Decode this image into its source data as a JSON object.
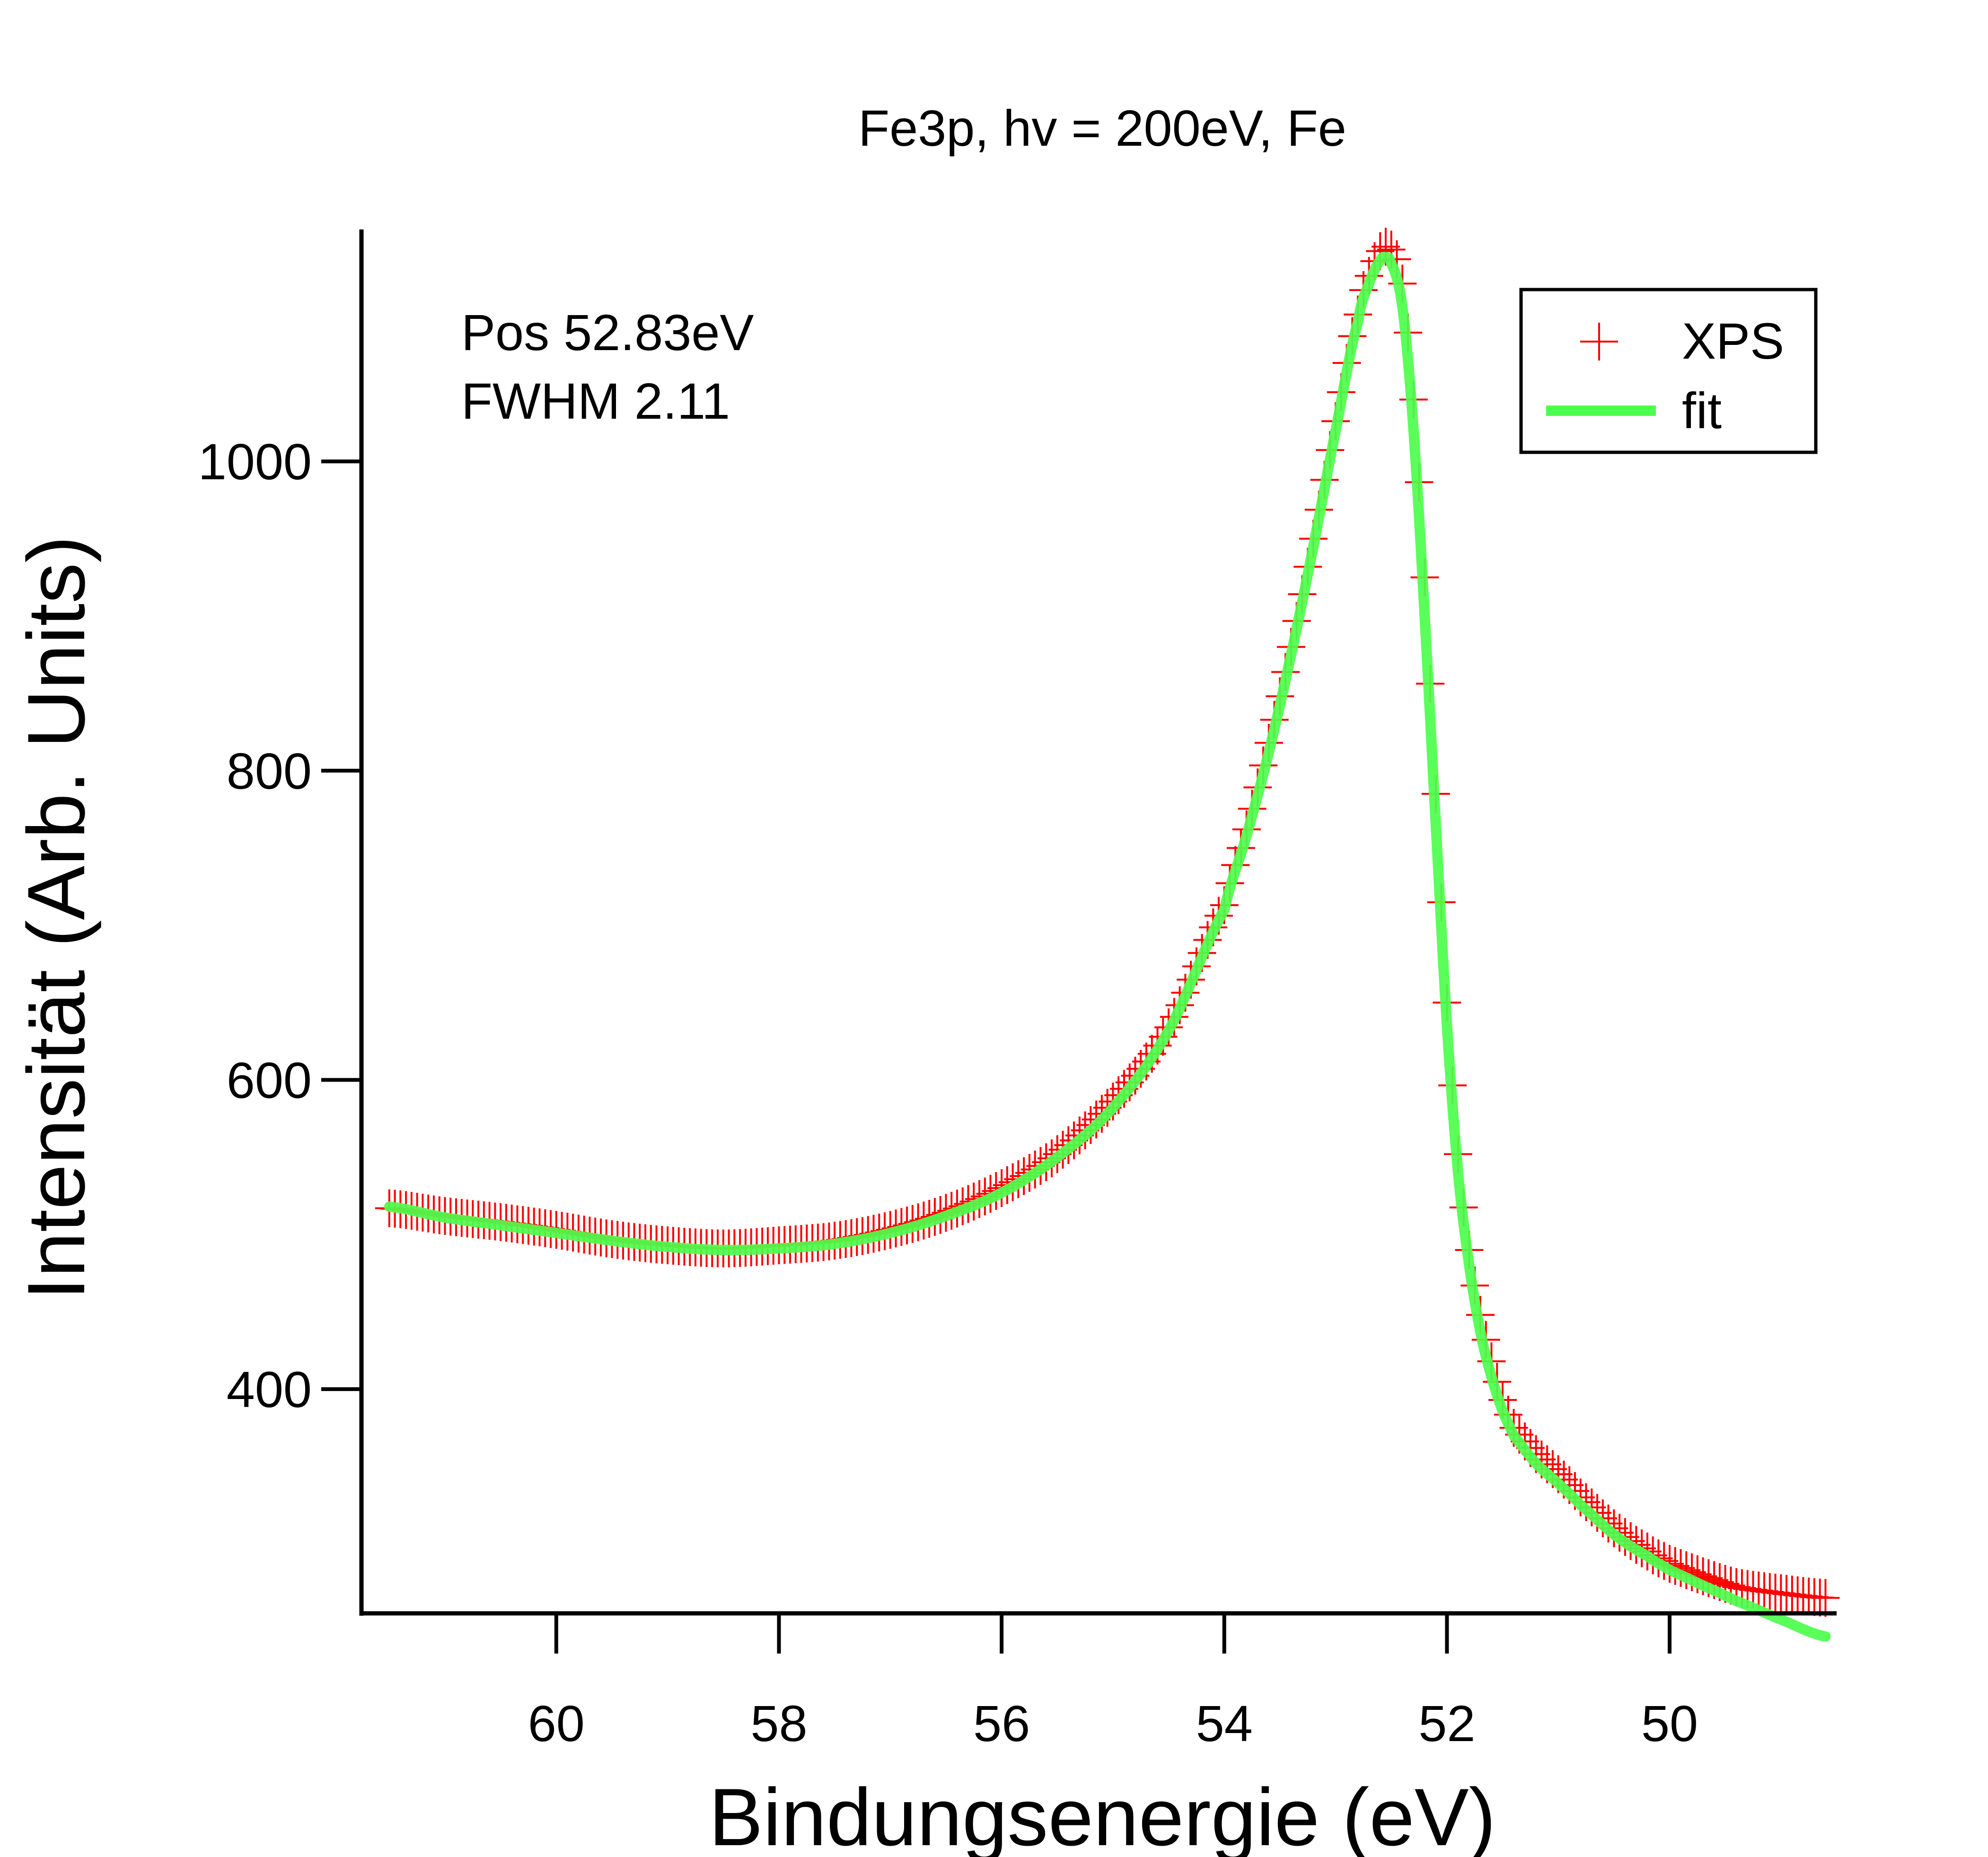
{
  "chart_data": {
    "type": "scatter",
    "title": "Fe3p, hv = 200eV, Fe",
    "xlabel": "Bindungsenergie (eV)",
    "ylabel": "Intensität (Arb. Units)",
    "x_reversed": true,
    "xlim": [
      61.75,
      48.5
    ],
    "ylim": [
      255,
      1150
    ],
    "xticks": [
      60,
      58,
      56,
      54,
      52,
      50
    ],
    "xtick_labels": [
      "60",
      "58",
      "56",
      "54",
      "52",
      "50"
    ],
    "yticks": [
      400,
      600,
      800,
      1000
    ],
    "ytick_labels": [
      "400",
      "600",
      "800",
      "1000"
    ],
    "grid": false,
    "legend_position": "top-right",
    "annotations": [
      "Pos 52.83eV",
      "FWHM 2.11"
    ],
    "colors": {
      "XPS": "#ff0000",
      "fit": "#4cff4c",
      "axes": "#000000"
    },
    "series": [
      {
        "name": "XPS",
        "kind": "markers",
        "marker": "cross",
        "x": [
          61.5,
          61.0,
          60.5,
          60.0,
          59.5,
          59.0,
          58.5,
          58.0,
          57.5,
          57.0,
          56.5,
          56.0,
          55.5,
          55.0,
          54.5,
          54.0,
          53.8,
          53.6,
          53.4,
          53.2,
          53.0,
          52.8,
          52.7,
          52.6,
          52.5,
          52.4,
          52.3,
          52.2,
          52.1,
          52.0,
          51.9,
          51.8,
          51.7,
          51.6,
          51.5,
          51.4,
          51.2,
          51.0,
          50.8,
          50.5,
          50.2,
          50.0,
          49.7,
          49.4,
          49.0,
          48.6
        ],
        "y": [
          517,
          512,
          508,
          503,
          497,
          493,
          491,
          493,
          496,
          503,
          514,
          530,
          552,
          586,
          634,
          713,
          762,
          818,
          880,
          950,
          1026,
          1095,
          1120,
          1136,
          1137,
          1115,
          1040,
          925,
          785,
          650,
          552,
          490,
          448,
          418,
          393,
          375,
          358,
          345,
          330,
          310,
          295,
          287,
          279,
          272,
          268,
          265
        ]
      },
      {
        "name": "fit",
        "kind": "line",
        "x": [
          61.5,
          61.0,
          60.5,
          60.0,
          59.5,
          59.0,
          58.5,
          58.0,
          57.5,
          57.0,
          56.5,
          56.0,
          55.5,
          55.0,
          54.5,
          54.0,
          53.8,
          53.6,
          53.4,
          53.2,
          53.0,
          52.8,
          52.7,
          52.6,
          52.55,
          52.5,
          52.4,
          52.3,
          52.2,
          52.1,
          52.0,
          51.9,
          51.8,
          51.7,
          51.6,
          51.5,
          51.4,
          51.2,
          51.0,
          50.8,
          50.5,
          50.2,
          50.0,
          49.7,
          49.4,
          49.0,
          48.6
        ],
        "y": [
          518,
          511,
          506,
          501,
          496,
          492,
          490,
          491,
          494,
          501,
          512,
          527,
          550,
          582,
          632,
          710,
          758,
          812,
          875,
          945,
          1020,
          1090,
          1115,
          1130,
          1132,
          1128,
          1100,
          1020,
          900,
          765,
          635,
          540,
          480,
          437,
          408,
          386,
          370,
          352,
          339,
          325,
          306,
          292,
          283,
          273,
          263,
          251,
          240
        ]
      }
    ]
  }
}
